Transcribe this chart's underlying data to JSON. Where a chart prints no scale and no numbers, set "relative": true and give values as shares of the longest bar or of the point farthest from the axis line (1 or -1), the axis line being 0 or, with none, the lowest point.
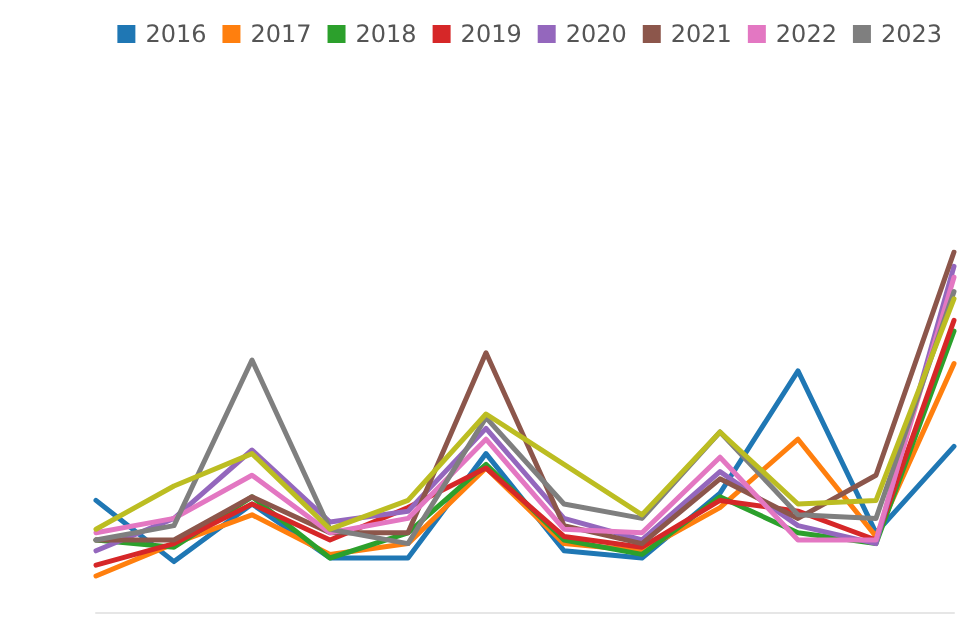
{
  "chart_data": {
    "type": "line",
    "relative": true,
    "categories": [
      null,
      null,
      null,
      null,
      null,
      null,
      null,
      null,
      null,
      null,
      null,
      null
    ],
    "series": [
      {
        "name": "2016",
        "color": "#1f77b4",
        "values": [
          0.31,
          0.14,
          0.3,
          0.15,
          0.15,
          0.44,
          0.17,
          0.15,
          0.33,
          0.67,
          0.22,
          0.46
        ]
      },
      {
        "name": "2017",
        "color": "#ff7f0e",
        "values": [
          0.1,
          0.19,
          0.27,
          0.16,
          0.19,
          0.4,
          0.19,
          0.17,
          0.29,
          0.48,
          0.21,
          0.69
        ]
      },
      {
        "name": "2018",
        "color": "#2ca02c",
        "values": [
          0.2,
          0.18,
          0.32,
          0.15,
          0.22,
          0.41,
          0.2,
          0.16,
          0.32,
          0.22,
          0.19,
          0.78
        ]
      },
      {
        "name": "2019",
        "color": "#d62728",
        "values": [
          0.13,
          0.19,
          0.3,
          0.2,
          0.29,
          0.4,
          0.21,
          0.18,
          0.31,
          0.28,
          0.2,
          0.81
        ]
      },
      {
        "name": "2020",
        "color": "#9467bd",
        "values": [
          0.17,
          0.26,
          0.45,
          0.25,
          0.28,
          0.51,
          0.26,
          0.2,
          0.39,
          0.24,
          0.19,
          0.96
        ]
      },
      {
        "name": "2021",
        "color": "#8c564b",
        "values": [
          0.2,
          0.2,
          0.32,
          0.22,
          0.22,
          0.72,
          0.24,
          0.19,
          0.37,
          0.26,
          0.38,
          1
        ]
      },
      {
        "name": "2022",
        "color": "#e377c2",
        "values": [
          0.22,
          0.26,
          0.38,
          0.22,
          0.26,
          0.48,
          0.23,
          0.22,
          0.43,
          0.2,
          0.2,
          0.93
        ]
      },
      {
        "name": "2023",
        "color": "#7f7f7f",
        "values": [
          0.2,
          0.24,
          0.7,
          0.23,
          0.19,
          0.54,
          0.3,
          0.26,
          0.5,
          0.27,
          0.26,
          0.89
        ]
      },
      {
        "color": "#bcbd22",
        "values": [
          0.23,
          0.35,
          0.44,
          0.23,
          0.31,
          0.55,
          0.41,
          0.27,
          0.5,
          0.3,
          0.31,
          0.87
        ]
      }
    ],
    "legend": "top right",
    "grid": false,
    "marker": "none",
    "line_style": "solid"
  }
}
